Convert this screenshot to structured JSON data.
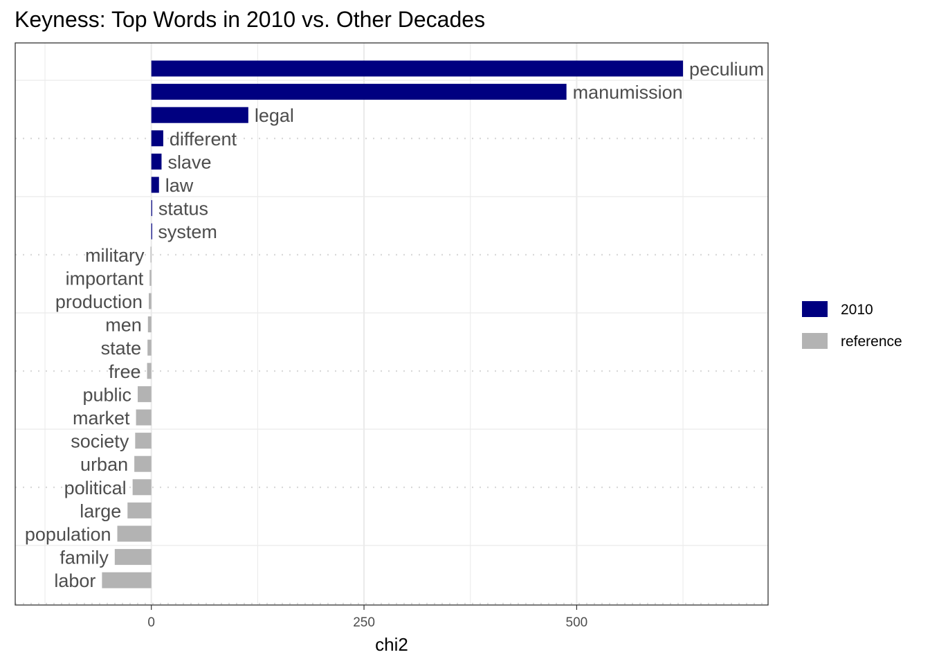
{
  "chart_data": {
    "type": "bar",
    "orientation": "horizontal",
    "title": "Keyness: Top Words in 2010 vs. Other Decades",
    "xlabel": "chi2",
    "ylabel": "",
    "xlim": [
      -160,
      725
    ],
    "xticks": [
      0,
      250,
      500
    ],
    "grid": true,
    "legend_position": "right",
    "legend": [
      {
        "name": "2010",
        "color": "#000080"
      },
      {
        "name": "reference",
        "color": "#b3b3b3"
      }
    ],
    "categories": [
      "peculium",
      "manumission",
      "legal",
      "different",
      "slave",
      "law",
      "status",
      "system",
      "military",
      "important",
      "production",
      "men",
      "state",
      "free",
      "public",
      "market",
      "society",
      "urban",
      "political",
      "large",
      "population",
      "family",
      "labor"
    ],
    "groups": [
      "2010",
      "2010",
      "2010",
      "2010",
      "2010",
      "2010",
      "2010",
      "2010",
      "reference",
      "reference",
      "reference",
      "reference",
      "reference",
      "reference",
      "reference",
      "reference",
      "reference",
      "reference",
      "reference",
      "reference",
      "reference",
      "reference",
      "reference"
    ],
    "values": [
      625,
      488,
      114,
      14,
      12,
      9,
      1,
      0.5,
      -1,
      -2,
      -3,
      -4,
      -4.5,
      -5,
      -16,
      -18,
      -19,
      -20,
      -22,
      -28,
      -40,
      -43,
      -58
    ]
  }
}
